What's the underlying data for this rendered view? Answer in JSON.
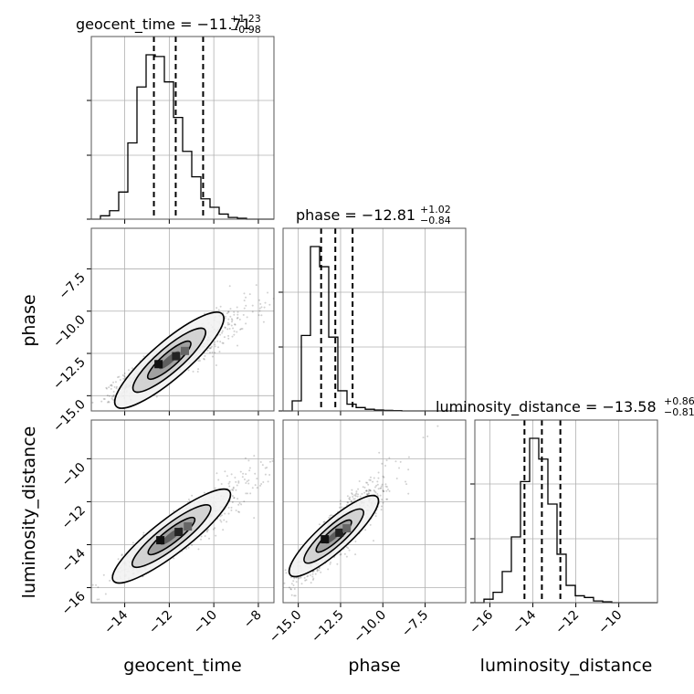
{
  "chart_data": {
    "type": "corner",
    "parameters": [
      "geocent_time",
      "phase",
      "luminosity_distance"
    ],
    "axis_labels": {
      "x": [
        "geocent_time",
        "phase",
        "luminosity_distance"
      ],
      "y": [
        "phase",
        "luminosity_distance"
      ]
    },
    "titles": [
      {
        "param": "geocent_time",
        "prefix": "geocent_time = ",
        "median": "−11.71",
        "plus": "+1.23",
        "minus": "−0.98"
      },
      {
        "param": "phase",
        "prefix": "phase = ",
        "median": "−12.81",
        "plus": "+1.02",
        "minus": "−0.84"
      },
      {
        "param": "luminosity_distance",
        "prefix": "luminosity_distance = ",
        "median": "−13.58",
        "plus": "+0.86",
        "minus": "−0.81"
      }
    ],
    "ranges": {
      "geocent_time": [
        -15.5,
        -7.3
      ],
      "phase": [
        -15.9,
        -5.1
      ],
      "luminosity_distance": [
        -16.7,
        -8.2
      ]
    },
    "ticks": {
      "geocent_time": [
        -14,
        -12,
        -10,
        -8
      ],
      "phase": [
        -15.0,
        -12.5,
        -10.0,
        -7.5
      ],
      "luminosity_distance": [
        -16,
        -14,
        -12,
        -10
      ]
    },
    "tick_labels": {
      "geocent_time": [
        "−14",
        "−12",
        "−10",
        "−8"
      ],
      "phase": [
        "−15.0",
        "−12.5",
        "−10.0",
        "−7.5"
      ],
      "luminosity_distance": [
        "−16",
        "−14",
        "−12",
        "−10"
      ]
    },
    "y_ticks_phase_row": {
      "values": [
        -15.0,
        -12.5,
        -10.0,
        -7.5
      ],
      "labels": [
        "−15.0",
        "−12.5",
        "−10.0",
        "−7.5"
      ]
    },
    "y_ticks_lumdist_row": {
      "values": [
        -16,
        -14,
        -12,
        -10
      ],
      "labels": [
        "−16",
        "−14",
        "−12",
        "−10"
      ]
    },
    "quantiles": {
      "geocent_time": [
        -12.69,
        -11.71,
        -10.48
      ],
      "phase": [
        -13.65,
        -12.81,
        -11.79
      ],
      "luminosity_distance": [
        -14.39,
        -13.58,
        -12.72
      ]
    },
    "histograms": {
      "geocent_time": {
        "bin_start": -15.5,
        "bin_width": 0.41,
        "counts": [
          0,
          2,
          5,
          16,
          45,
          78,
          97,
          96,
          81,
          60,
          40,
          25,
          12,
          7,
          3,
          1,
          0.5,
          0,
          0,
          0
        ]
      },
      "phase": {
        "bin_start": -15.9,
        "bin_width": 0.54,
        "counts": [
          0,
          6,
          45,
          98,
          86,
          44,
          12,
          4,
          2,
          1,
          0.5,
          0.3,
          0.2,
          0,
          0,
          0,
          0,
          0,
          0,
          0
        ]
      },
      "luminosity_distance": {
        "bin_start": -16.7,
        "bin_width": 0.425,
        "counts": [
          0,
          2,
          6,
          18,
          38,
          70,
          95,
          83,
          57,
          28,
          10,
          4,
          3,
          1,
          0.5,
          0,
          0,
          0,
          0,
          0
        ]
      }
    },
    "pairs": [
      {
        "x": "geocent_time",
        "y": "phase",
        "center": [
          -12.0,
          -12.9
        ],
        "spread": [
          1.1,
          0.95
        ],
        "rho": 0.88
      },
      {
        "x": "geocent_time",
        "y": "luminosity_distance",
        "center": [
          -11.9,
          -13.6
        ],
        "spread": [
          1.1,
          0.85
        ],
        "rho": 0.9
      },
      {
        "x": "phase",
        "y": "luminosity_distance",
        "center": [
          -12.9,
          -13.6
        ],
        "spread": [
          0.95,
          0.85
        ],
        "rho": 0.88
      }
    ],
    "grid": true
  }
}
